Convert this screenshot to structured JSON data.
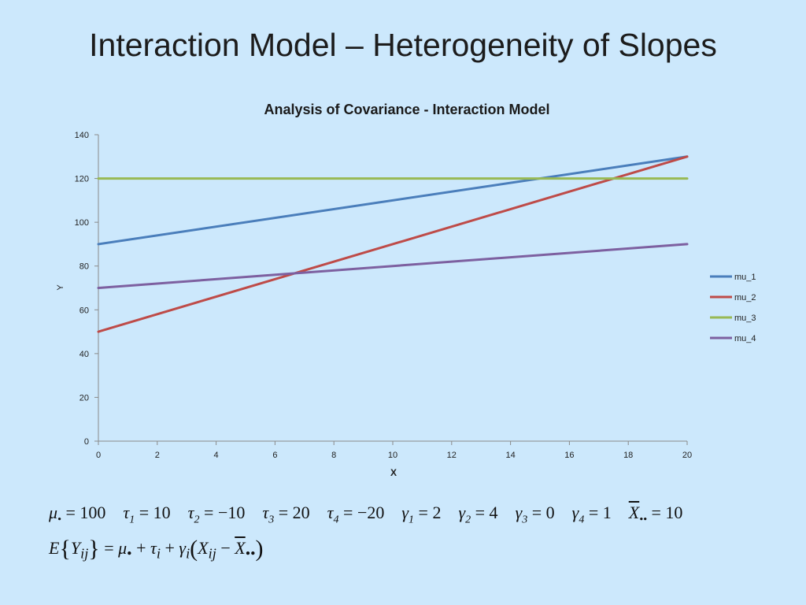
{
  "slide": {
    "title": "Interaction Model – Heterogeneity of Slopes"
  },
  "chart_data": {
    "type": "line",
    "title": "Analysis of Covariance - Interaction Model",
    "xlabel": "X",
    "ylabel": "Y",
    "xlim": [
      0,
      20
    ],
    "ylim": [
      0,
      140
    ],
    "xticks": [
      "0",
      "2",
      "4",
      "6",
      "8",
      "10",
      "12",
      "14",
      "16",
      "18",
      "20"
    ],
    "yticks": [
      "0",
      "20",
      "40",
      "60",
      "80",
      "100",
      "120",
      "140"
    ],
    "grid": false,
    "legend_position": "right",
    "series": [
      {
        "name": "mu_1",
        "color": "#4a7ebb",
        "x": [
          0,
          20
        ],
        "y": [
          90,
          130
        ]
      },
      {
        "name": "mu_2",
        "color": "#be4b48",
        "x": [
          0,
          20
        ],
        "y": [
          50,
          130
        ]
      },
      {
        "name": "mu_3",
        "color": "#98b954",
        "x": [
          0,
          20
        ],
        "y": [
          120,
          120
        ]
      },
      {
        "name": "mu_4",
        "color": "#7d60a0",
        "x": [
          0,
          20
        ],
        "y": [
          70,
          90
        ]
      }
    ]
  },
  "equations": {
    "params": [
      {
        "sym": "μ",
        "sub": "•",
        "val": "= 100"
      },
      {
        "sym": "τ",
        "sub": "1",
        "val": "= 10"
      },
      {
        "sym": "τ",
        "sub": "2",
        "val": "= −10"
      },
      {
        "sym": "τ",
        "sub": "3",
        "val": "= 20"
      },
      {
        "sym": "τ",
        "sub": "4",
        "val": "= −20"
      },
      {
        "sym": "γ",
        "sub": "1",
        "val": "= 2"
      },
      {
        "sym": "γ",
        "sub": "2",
        "val": "= 4"
      },
      {
        "sym": "γ",
        "sub": "3",
        "val": "= 0"
      },
      {
        "sym": "γ",
        "sub": "4",
        "val": "= 1"
      },
      {
        "sym": "X",
        "sub": "••",
        "val": "= 10",
        "bar": true
      }
    ],
    "model": "E{Y_ij} = μ• + τi + γi(Xij − X••)"
  }
}
